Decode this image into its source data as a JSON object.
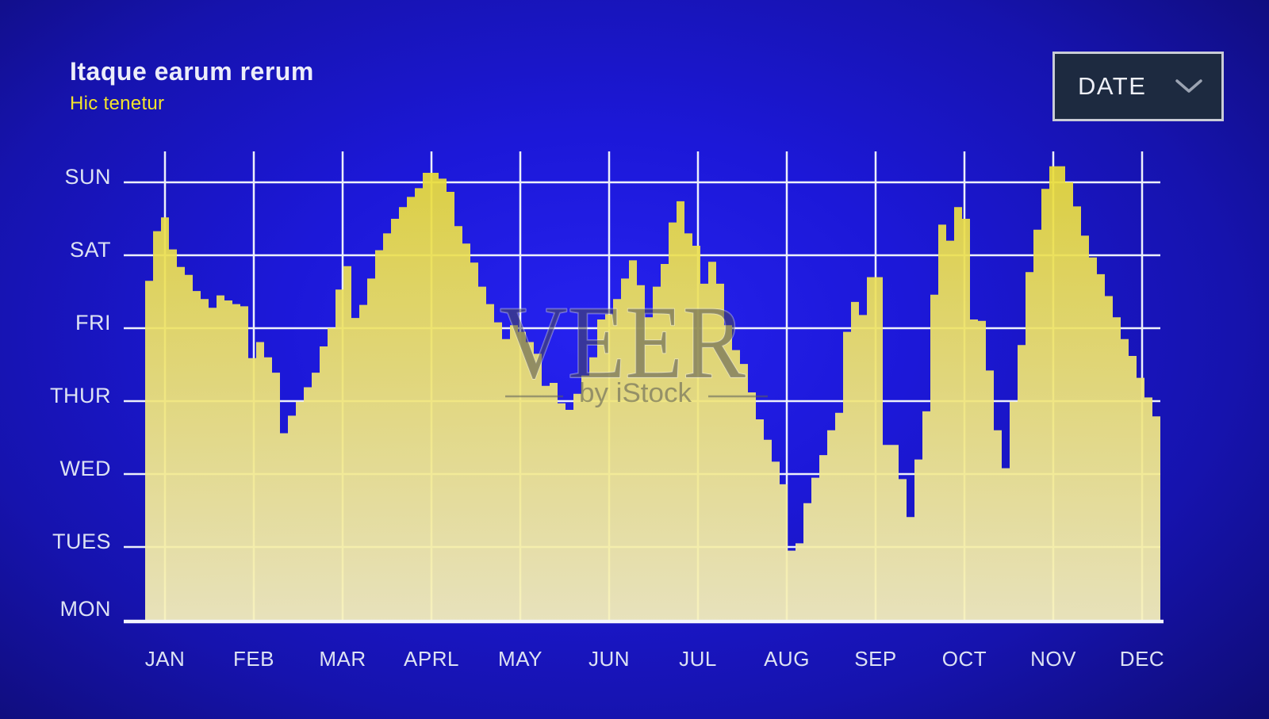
{
  "header": {
    "title": "Itaque earum rerum",
    "subtitle": "Hic tenetur"
  },
  "controls": {
    "date_dropdown": {
      "label": "DATE",
      "icon": "chevron-down-icon"
    }
  },
  "watermark": {
    "brand": "VEER",
    "byline": "by iStock"
  },
  "chart_data": {
    "type": "area",
    "style": "stepped-area",
    "title": "Itaque earum rerum",
    "subtitle": "Hic tenetur",
    "x_tick_labels": [
      "JAN",
      "FEB",
      "MAR",
      "APRL",
      "MAY",
      "JUN",
      "JUL",
      "AUG",
      "SEP",
      "OCT",
      "NOV",
      "DEC"
    ],
    "y_tick_labels_top_to_bottom": [
      "SUN",
      "SAT",
      "FRI",
      "THUR",
      "WED",
      "TUES",
      "MON"
    ],
    "y_scale": {
      "baseline_label": "MON",
      "baseline_value": 0,
      "top_label": "SUN",
      "top_value": 6
    },
    "grid": true,
    "legend": "none",
    "num_steps": 128,
    "values_day_units": [
      4.65,
      5.33,
      5.52,
      5.08,
      4.84,
      4.73,
      4.51,
      4.4,
      4.28,
      4.45,
      4.38,
      4.33,
      4.3,
      3.59,
      3.81,
      3.6,
      3.39,
      2.56,
      2.8,
      2.99,
      3.19,
      3.39,
      3.75,
      4.0,
      4.53,
      4.85,
      4.14,
      4.32,
      4.68,
      5.07,
      5.3,
      5.5,
      5.66,
      5.8,
      5.92,
      6.13,
      6.13,
      6.05,
      5.87,
      5.4,
      5.16,
      4.9,
      4.57,
      4.33,
      4.08,
      3.85,
      4.04,
      3.95,
      3.81,
      3.65,
      3.21,
      3.25,
      2.97,
      2.88,
      3.1,
      3.35,
      3.6,
      4.12,
      4.19,
      4.4,
      4.68,
      4.93,
      4.59,
      4.15,
      4.57,
      4.88,
      5.45,
      5.74,
      5.3,
      5.13,
      4.61,
      4.91,
      4.61,
      4.04,
      3.7,
      3.51,
      3.12,
      2.75,
      2.47,
      2.17,
      1.86,
      0.95,
      1.05,
      1.6,
      1.95,
      2.26,
      2.6,
      2.84,
      3.95,
      4.36,
      4.18,
      4.7,
      4.7,
      2.4,
      2.4,
      1.93,
      1.41,
      2.2,
      2.86,
      4.46,
      5.42,
      5.2,
      5.66,
      5.5,
      4.12,
      4.1,
      3.42,
      2.6,
      2.08,
      2.99,
      3.77,
      4.77,
      5.35,
      5.91,
      6.22,
      6.22,
      6.0,
      5.67,
      5.27,
      4.97,
      4.74,
      4.44,
      4.15,
      3.85,
      3.62,
      3.32,
      3.05,
      2.79
    ],
    "colors": {
      "area_top": "#eadd38",
      "area_mid": "#efe472",
      "area_bottom": "#f7f1bb",
      "grid": "#edf0fa",
      "background_center": "#1f1ae8",
      "background_edge": "#070630",
      "label_text": "#dde2f3",
      "subtitle_accent": "#f3e52b"
    }
  }
}
